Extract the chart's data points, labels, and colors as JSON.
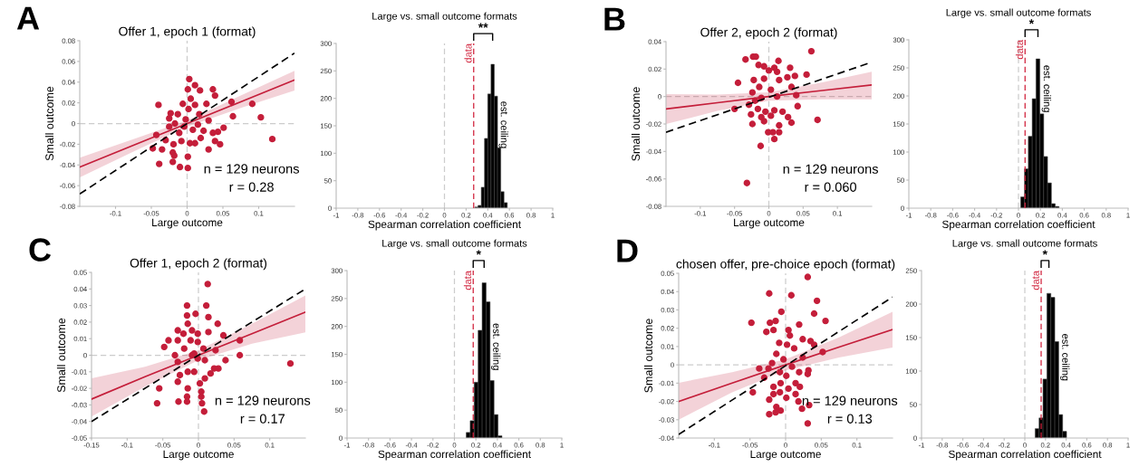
{
  "chart_data": [
    {
      "type": "scatter",
      "title": "Offer 1, epoch 1 (format)",
      "xlabel": "Large outcome",
      "ylabel": "Small outcome",
      "xlim": [
        -0.15,
        0.15
      ],
      "xticks": [
        -0.1,
        -0.05,
        0,
        0.05,
        0.1
      ],
      "ylim": [
        -0.08,
        0.08
      ],
      "yticks": [
        -0.08,
        -0.06,
        -0.04,
        -0.02,
        0,
        0.02,
        0.04,
        0.06,
        0.08
      ],
      "series": [
        {
          "type": "scatter",
          "marker": "circle",
          "color": "#c41e3a",
          "x": [
            0.003,
            0.011,
            0.018,
            0.001,
            0.036,
            0.039,
            0.005,
            -0.04,
            -0.006,
            0.011,
            0.027,
            0.062,
            0.091,
            0.064,
            0.103,
            0.119,
            -0.023,
            -0.013,
            -0.025,
            0.002,
            0.017,
            0.03,
            -0.017,
            -0.004,
            0.008,
            0.023,
            0.036,
            0.051,
            0.043,
            -0.043,
            -0.03,
            -0.019,
            -0.008,
            0.004,
            0.019,
            0.039,
            0.046,
            -0.048,
            -0.035,
            0.03,
            -0.02,
            -0.018,
            0.001,
            -0.039,
            -0.02,
            -0.01,
            0.001,
            0.011,
            -0.011,
            0.015,
            -0.025,
            -0.002
          ],
          "values": [
            0.043,
            0.037,
            0.032,
            0.033,
            0.033,
            0.027,
            0.024,
            0.018,
            0.019,
            0.018,
            0.019,
            0.021,
            0.019,
            0.007,
            0.006,
            -0.015,
            0.01,
            0.009,
            0.005,
            0.014,
            0.009,
            0.003,
            0,
            -0.003,
            -0.006,
            -0.007,
            -0.009,
            -0.004,
            -0.008,
            -0.011,
            -0.016,
            -0.02,
            -0.017,
            -0.019,
            -0.014,
            -0.017,
            -0.02,
            -0.024,
            -0.025,
            -0.025,
            -0.028,
            -0.031,
            -0.032,
            -0.039,
            -0.037,
            -0.042,
            -0.043,
            -0.019,
            -0.009,
            -0.001,
            -0.003,
            0.004
          ]
        },
        {
          "type": "line",
          "color": "#c41e3a",
          "x": [
            -0.15,
            -0.075,
            0,
            0.075,
            0.15
          ],
          "values": [
            -0.042,
            -0.021,
            0,
            0.021,
            0.042
          ],
          "lower": [
            -0.052,
            -0.027,
            -0.003,
            0.015,
            0.032
          ],
          "upper": [
            -0.033,
            -0.015,
            0.003,
            0.027,
            0.051
          ]
        },
        {
          "type": "line",
          "color": "#000000",
          "line_style": "dashed",
          "x": [
            -0.15,
            0.15
          ],
          "values": [
            -0.068,
            0.068
          ]
        }
      ],
      "ref_lines": [
        {
          "axis": "x",
          "value": 0,
          "color": "#cccccc",
          "line_style": "dashed"
        },
        {
          "axis": "y",
          "value": 0,
          "color": "#cccccc",
          "line_style": "dashed"
        }
      ],
      "annotations": [
        "A",
        "n = 129 neurons",
        "r = 0.28"
      ]
    },
    {
      "type": "histogram",
      "title": "Large vs. small outcome formats",
      "xlabel": "Spearman correlation coefficient",
      "color": "#000000",
      "bins": [
        0.28,
        0.31,
        0.34,
        0.37,
        0.4,
        0.43,
        0.46,
        0.49,
        0.52,
        0.55,
        0.58
      ],
      "values": [
        2,
        5,
        38,
        127,
        208,
        262,
        204,
        110,
        30,
        10
      ],
      "xlim": [
        -1,
        1
      ],
      "xticks": [
        -1,
        -0.8,
        -0.6,
        -0.4,
        -0.2,
        0,
        0.2,
        0.4,
        0.6,
        0.8,
        1
      ],
      "ylim": [
        0,
        300
      ],
      "yticks": [
        0,
        50,
        100,
        150,
        200,
        250,
        300
      ],
      "ref_lines": [
        {
          "axis": "x",
          "value": 0,
          "color": "#cccccc",
          "line_style": "dashed"
        },
        {
          "axis": "x",
          "value": 0.27,
          "label": "data",
          "color": "#d0203a",
          "line_style": "dashed"
        }
      ],
      "annotations": [
        {
          "text": "est. ceiling",
          "x": 0.49,
          "y": 195
        },
        "**"
      ]
    },
    {
      "type": "scatter",
      "title": "Offer 2, epoch 2 (format)",
      "xlabel": "Large outcome",
      "ylabel": "Small outcome",
      "xlim": [
        -0.15,
        0.15
      ],
      "xticks": [
        -0.1,
        -0.05,
        0,
        0.05,
        0.1
      ],
      "ylim": [
        -0.08,
        0.04
      ],
      "yticks": [
        -0.08,
        -0.06,
        -0.04,
        -0.02,
        0,
        0.02,
        0.04
      ],
      "series": [
        {
          "type": "scatter",
          "marker": "circle",
          "color": "#c41e3a",
          "x": [
            0.062,
            -0.034,
            -0.023,
            -0.019,
            0.014,
            -0.015,
            -0.007,
            0.008,
            0.031,
            0,
            0.012,
            0.038,
            0.055,
            0.027,
            -0.045,
            -0.022,
            -0.007,
            0.015,
            0.033,
            -0.014,
            0.003,
            -0.024,
            0.04,
            0.012,
            -0.011,
            0.042,
            -0.05,
            -0.029,
            -0.016,
            -0.005,
            0.008,
            0.02,
            -0.026,
            0.028,
            0.033,
            0.071,
            -0.007,
            -0.024,
            0.015,
            0.015,
            -0.001,
            0.006,
            0.008,
            -0.012,
            -0.032,
            -0.011,
            0.003,
            -0.02
          ],
          "values": [
            0.033,
            0.027,
            0.029,
            0.029,
            0.026,
            0.023,
            0.022,
            0.021,
            0.021,
            0.019,
            0.018,
            0.015,
            0.016,
            0.014,
            0.01,
            0.012,
            0.013,
            0.012,
            0.007,
            0.007,
            0.005,
            0.003,
            0.001,
            0,
            -0.001,
            -0.007,
            -0.009,
            -0.006,
            -0.009,
            -0.011,
            -0.01,
            -0.011,
            -0.013,
            -0.015,
            -0.019,
            -0.017,
            -0.018,
            -0.02,
            -0.021,
            -0.026,
            -0.026,
            -0.026,
            -0.031,
            -0.036,
            -0.063,
            -0.015,
            -0.014,
            -0.003
          ]
        },
        {
          "type": "line",
          "color": "#c41e3a",
          "x": [
            -0.15,
            -0.075,
            0,
            0.075,
            0.15
          ],
          "values": [
            -0.009,
            -0.0045,
            0,
            0.0042,
            0.0084
          ],
          "lower": [
            -0.02,
            -0.0105,
            -0.003,
            -0.002,
            -0.002
          ],
          "upper": [
            0.0017,
            0.0015,
            0.003,
            0.01,
            0.018
          ]
        },
        {
          "type": "line",
          "color": "#000000",
          "line_style": "dashed",
          "x": [
            -0.15,
            0.15
          ],
          "values": [
            -0.026,
            0.025
          ]
        }
      ],
      "ref_lines": [
        {
          "axis": "x",
          "value": 0,
          "color": "#cccccc",
          "line_style": "dashed"
        },
        {
          "axis": "y",
          "value": 0,
          "color": "#cccccc",
          "line_style": "dashed"
        }
      ],
      "annotations": [
        "B",
        "n = 129 neurons",
        "r = 0.060"
      ]
    },
    {
      "type": "histogram",
      "title": "Large vs. small outcome formats",
      "xlabel": "Spearman correlation coefficient",
      "color": "#000000",
      "bins": [
        0.02,
        0.055,
        0.09,
        0.125,
        0.16,
        0.195,
        0.23,
        0.265,
        0.3,
        0.335,
        0.37
      ],
      "values": [
        20,
        70,
        128,
        195,
        266,
        168,
        92,
        45,
        8,
        3
      ],
      "xlim": [
        -1,
        1
      ],
      "xticks": [
        -1,
        -0.8,
        -0.6,
        -0.4,
        -0.2,
        0,
        0.2,
        0.4,
        0.6,
        0.8,
        1
      ],
      "ylim": [
        0,
        300
      ],
      "yticks": [
        0,
        50,
        100,
        150,
        200,
        250,
        300
      ],
      "ref_lines": [
        {
          "axis": "x",
          "value": 0,
          "color": "#cccccc",
          "line_style": "dashed"
        },
        {
          "axis": "x",
          "value": 0.06,
          "label": "data",
          "color": "#d0203a",
          "line_style": "dashed"
        }
      ],
      "annotations": [
        {
          "text": "est. ceiling",
          "x": 0.2,
          "y": 255
        },
        "*"
      ]
    },
    {
      "type": "scatter",
      "title": "Offer 1, epoch 2 (format)",
      "xlabel": "Large outcome",
      "ylabel": "Small outcome",
      "xlim": [
        -0.15,
        0.15
      ],
      "xticks": [
        -0.15,
        -0.1,
        -0.05,
        0,
        0.05,
        0.1
      ],
      "ylim": [
        -0.05,
        0.05
      ],
      "yticks": [
        -0.05,
        -0.04,
        -0.03,
        -0.02,
        -0.01,
        0,
        0.01,
        0.02,
        0.03,
        0.04,
        0.05
      ],
      "series": [
        {
          "type": "scatter",
          "marker": "circle",
          "color": "#c41e3a",
          "x": [
            0.013,
            -0.016,
            0.011,
            -0.004,
            -0.016,
            0.014,
            -0.015,
            0.027,
            -0.029,
            -0.009,
            0.014,
            -0.021,
            0.035,
            -0.042,
            -0.029,
            -0.011,
            -0.001,
            0.058,
            -0.048,
            -0.02,
            0.007,
            0.024,
            -0.033,
            -0.009,
            0.058,
            -0.001,
            0.038,
            -0.029,
            0.009,
            0.129,
            0.022,
            0.028,
            -0.015,
            -0.006,
            0.017,
            -0.026,
            0.009,
            -0.029,
            0.002,
            -0.015,
            -0.055,
            0.004,
            -0.016,
            0.004,
            -0.058,
            -0.028,
            -0.016,
            0.005,
            0.008,
            -0.006,
            -0.001
          ],
          "values": [
            0.043,
            0.03,
            0.03,
            0.025,
            0.024,
            0.023,
            0.019,
            0.019,
            0.015,
            0.015,
            0.014,
            0.013,
            0.012,
            0.009,
            0.009,
            0.009,
            0.008,
            0.009,
            0.005,
            0.004,
            0.004,
            0.003,
            0,
            0,
            0,
            -0.002,
            -0.003,
            -0.004,
            -0.003,
            -0.005,
            -0.008,
            -0.008,
            -0.01,
            -0.01,
            -0.011,
            -0.012,
            -0.014,
            -0.016,
            -0.017,
            -0.02,
            -0.02,
            -0.022,
            -0.025,
            -0.025,
            -0.029,
            -0.028,
            -0.028,
            -0.029,
            -0.034,
            0.001,
            0.013
          ]
        },
        {
          "type": "line",
          "color": "#c41e3a",
          "x": [
            -0.15,
            -0.075,
            0,
            0.075,
            0.15
          ],
          "values": [
            -0.0265,
            -0.013,
            0,
            0.013,
            0.026
          ],
          "lower": [
            -0.037,
            -0.019,
            -0.003,
            0.007,
            0.0138
          ],
          "upper": [
            -0.014,
            -0.007,
            0.003,
            0.019,
            0.036
          ]
        },
        {
          "type": "line",
          "color": "#000000",
          "line_style": "dashed",
          "x": [
            -0.15,
            0.15
          ],
          "values": [
            -0.04,
            0.04
          ]
        }
      ],
      "ref_lines": [
        {
          "axis": "x",
          "value": 0,
          "color": "#cccccc",
          "line_style": "dashed"
        },
        {
          "axis": "y",
          "value": 0,
          "color": "#cccccc",
          "line_style": "dashed"
        }
      ],
      "annotations": [
        "C",
        "n = 129 neurons",
        "r = 0.17"
      ]
    },
    {
      "type": "histogram",
      "title": "Large vs. small outcome formats",
      "xlabel": "Spearman correlation coefficient",
      "color": "#000000",
      "bins": [
        0.11,
        0.147,
        0.184,
        0.221,
        0.258,
        0.295,
        0.332,
        0.369,
        0.406,
        0.443
      ],
      "values": [
        10,
        31,
        100,
        193,
        278,
        244,
        103,
        42,
        4
      ],
      "xlim": [
        -1,
        1
      ],
      "xticks": [
        -1,
        -0.8,
        -0.6,
        -0.4,
        -0.2,
        0,
        0.2,
        0.4,
        0.6,
        0.8,
        1
      ],
      "ylim": [
        0,
        300
      ],
      "yticks": [
        0,
        50,
        100,
        150,
        200,
        250,
        300
      ],
      "ref_lines": [
        {
          "axis": "x",
          "value": 0,
          "color": "#cccccc",
          "line_style": "dashed"
        },
        {
          "axis": "x",
          "value": 0.175,
          "label": "data",
          "color": "#d0203a",
          "line_style": "dashed"
        }
      ],
      "annotations": [
        {
          "text": "est. ceiling",
          "x": 0.33,
          "y": 206
        },
        "*"
      ]
    },
    {
      "type": "scatter",
      "title": "chosen offer, pre-choice epoch (format)",
      "xlabel": "Large outcome",
      "ylabel": "Small outcome",
      "xlim": [
        -0.15,
        0.15
      ],
      "xticks": [
        -0.1,
        -0.05,
        0,
        0.05,
        0.1
      ],
      "ylim": [
        -0.04,
        0.05
      ],
      "yticks": [
        -0.04,
        -0.03,
        -0.02,
        -0.01,
        0,
        0.01,
        0.02,
        0.03,
        0.04,
        0.05
      ],
      "series": [
        {
          "type": "scatter",
          "marker": "circle",
          "color": "#c41e3a",
          "x": [
            0.031,
            -0.023,
            0.008,
            0.044,
            -0.006,
            0.04,
            -0.048,
            -0.022,
            -0.014,
            0.019,
            0.056,
            -0.027,
            -0.017,
            0.004,
            0.024,
            0.006,
            -0.009,
            0.002,
            0.035,
            0.04,
            0.012,
            0.052,
            -0.013,
            0.024,
            -0.003,
            -0.019,
            -0.037,
            -0.024,
            0.009,
            0.032,
            -0.008,
            0.001,
            0.019,
            -0.03,
            0.031,
            -0.007,
            0.014,
            -0.017,
            0.004,
            0.02,
            -0.046,
            -0.008,
            -0.017,
            0.014,
            -0.023,
            0.001,
            0.018,
            0.033,
            0.023,
            -0.013,
            -0.007,
            -0.023,
            -0.014,
            0.031
          ],
          "values": [
            0.048,
            0.039,
            0.038,
            0.035,
            0.029,
            0.028,
            0.023,
            0.023,
            0.024,
            0.022,
            0.024,
            0.018,
            0.019,
            0.019,
            0.014,
            0.016,
            0.012,
            0.011,
            0.013,
            0.011,
            0.009,
            0.007,
            0.006,
            0.004,
            0.003,
            0.001,
            -0.002,
            -0.002,
            -0.001,
            -0.003,
            -0.004,
            -0.006,
            -0.004,
            -0.007,
            -0.005,
            -0.01,
            -0.01,
            -0.012,
            -0.013,
            -0.012,
            -0.015,
            -0.015,
            -0.016,
            -0.016,
            -0.019,
            -0.018,
            -0.02,
            -0.022,
            -0.024,
            -0.023,
            -0.025,
            -0.027,
            -0.026,
            -0.032
          ]
        },
        {
          "type": "line",
          "color": "#c41e3a",
          "x": [
            -0.15,
            -0.075,
            0,
            0.075,
            0.15
          ],
          "values": [
            -0.02,
            -0.01,
            0,
            0.0097,
            0.0193
          ],
          "lower": [
            -0.03,
            -0.015,
            -0.003,
            0.004,
            0.0094
          ],
          "upper": [
            -0.0098,
            -0.004,
            0.003,
            0.015,
            0.029
          ]
        },
        {
          "type": "line",
          "color": "#000000",
          "line_style": "dashed",
          "x": [
            -0.15,
            0.15
          ],
          "values": [
            -0.038,
            0.037
          ]
        }
      ],
      "ref_lines": [
        {
          "axis": "x",
          "value": 0,
          "color": "#cccccc",
          "line_style": "dashed"
        },
        {
          "axis": "y",
          "value": 0,
          "color": "#cccccc",
          "line_style": "dashed"
        }
      ],
      "annotations": [
        "D",
        "n = 129 neurons",
        "r = 0.13"
      ]
    },
    {
      "type": "histogram",
      "title": "Large vs. small outcome formats",
      "xlabel": "Spearman correlation coefficient",
      "color": "#000000",
      "bins": [
        0.1,
        0.138,
        0.176,
        0.214,
        0.252,
        0.29,
        0.328,
        0.366,
        0.404
      ],
      "values": [
        14,
        30,
        88,
        216,
        210,
        144,
        35,
        10
      ],
      "xlim": [
        -1,
        1
      ],
      "xticks": [
        -1,
        -0.8,
        -0.6,
        -0.4,
        -0.2,
        0,
        0.2,
        0.4,
        0.6,
        0.8,
        1
      ],
      "ylim": [
        0,
        250
      ],
      "yticks": [
        0,
        50,
        100,
        150,
        200,
        250
      ],
      "ref_lines": [
        {
          "axis": "x",
          "value": 0,
          "color": "#cccccc",
          "line_style": "dashed"
        },
        {
          "axis": "x",
          "value": 0.158,
          "label": "data",
          "color": "#d0203a",
          "line_style": "dashed"
        }
      ],
      "annotations": [
        {
          "text": "est. ceiling",
          "x": 0.33,
          "y": 156
        },
        "*"
      ]
    }
  ]
}
